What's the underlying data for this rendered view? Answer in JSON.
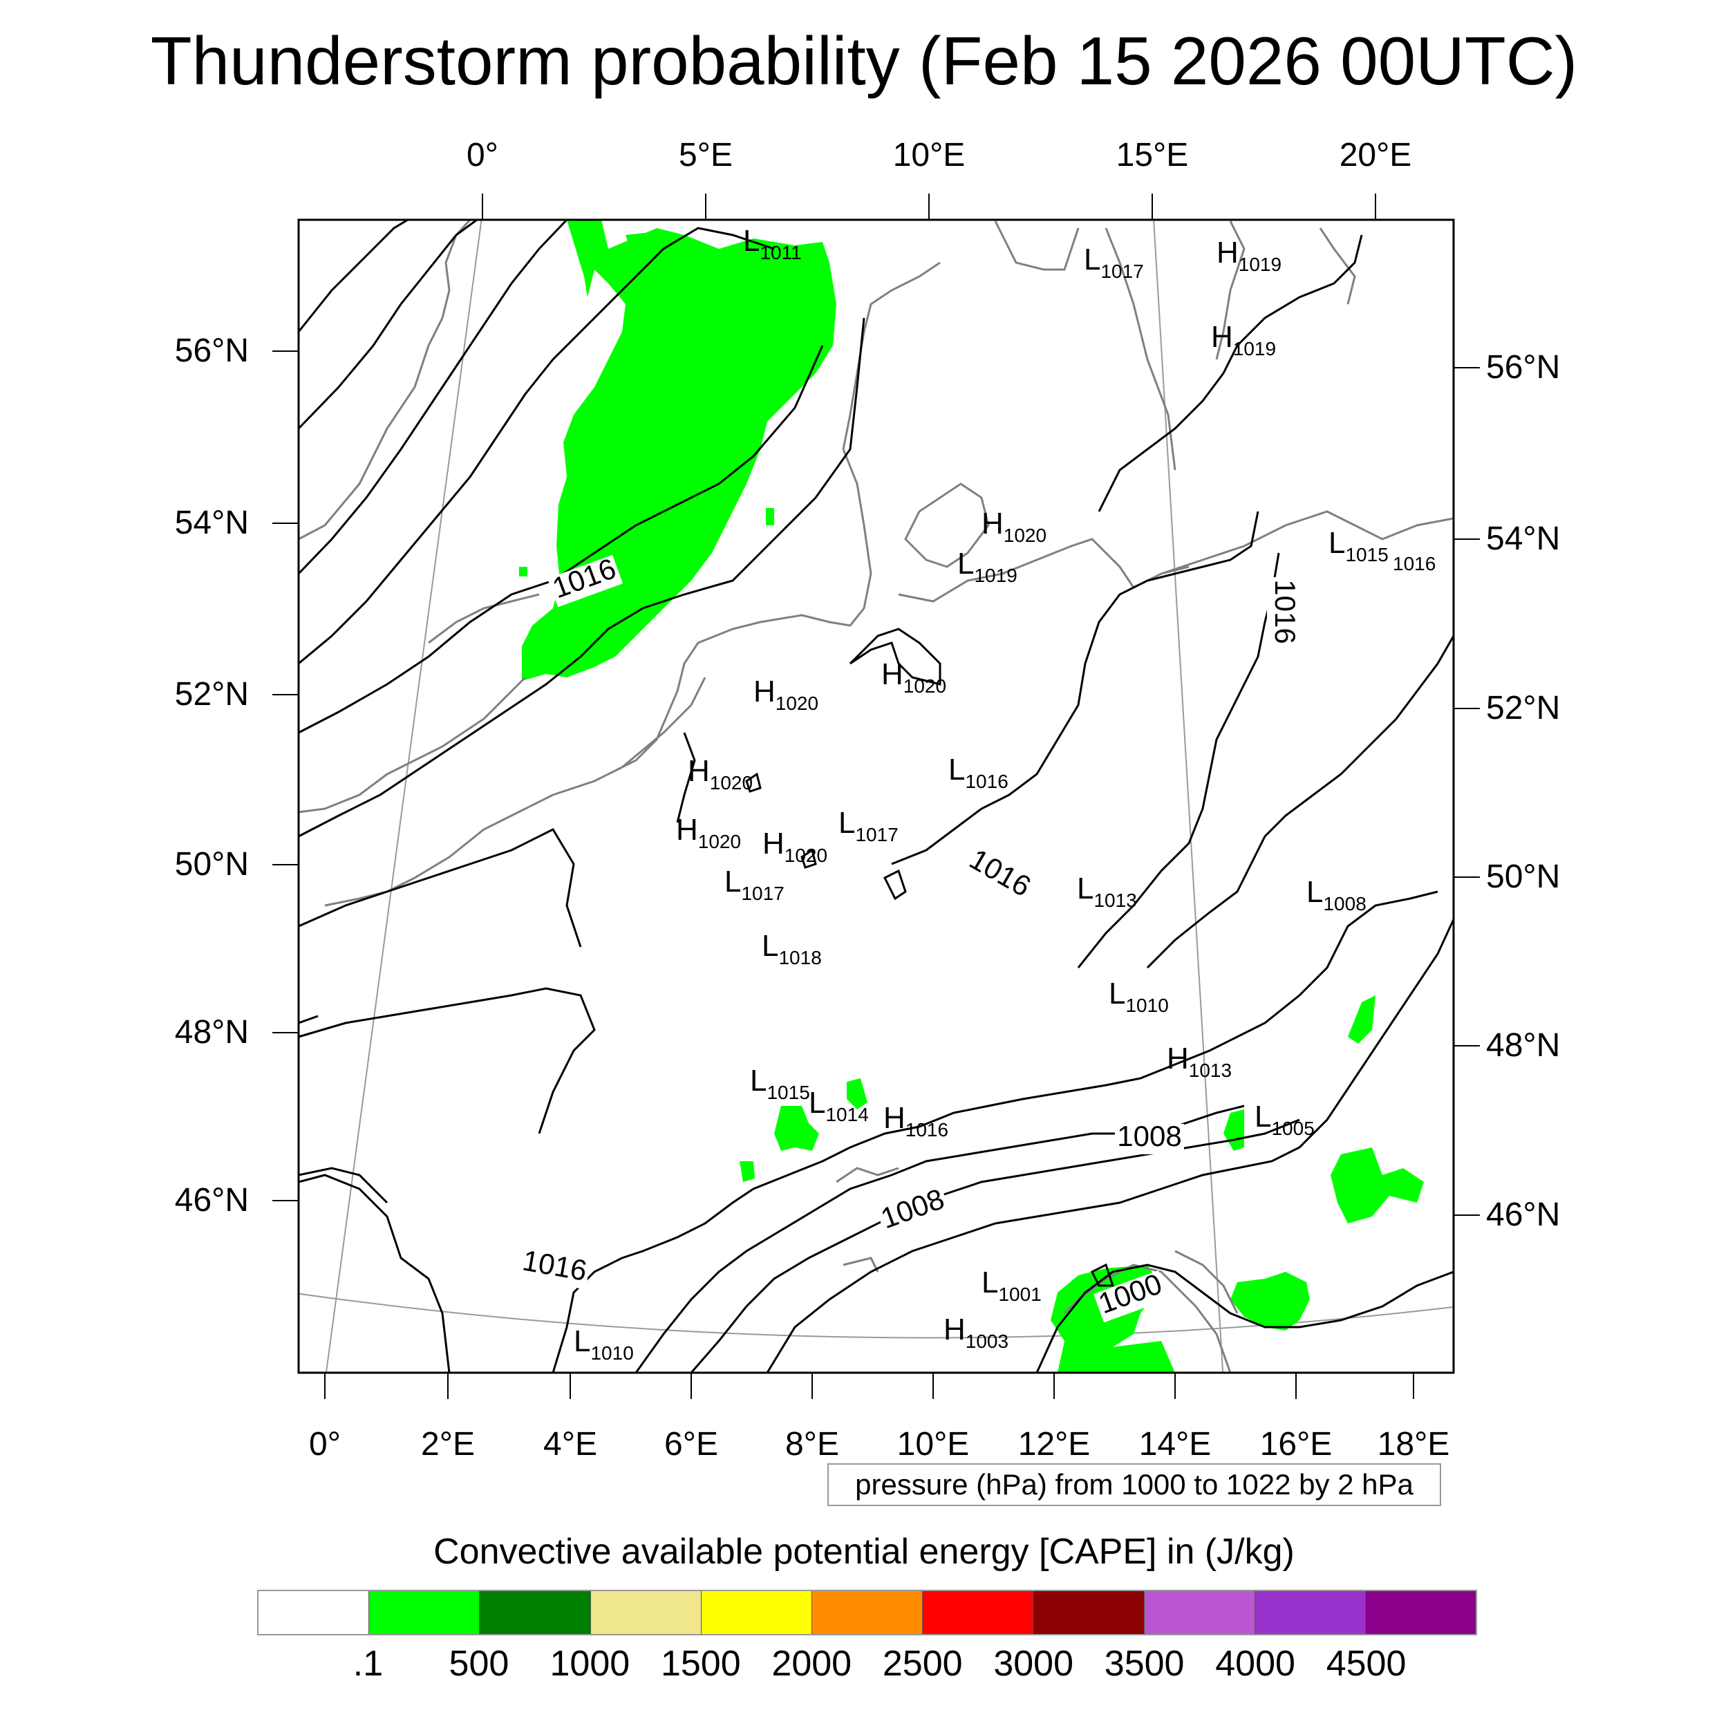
{
  "title": "Thunderstorm probability (Feb 15 2026 00UTC)",
  "top_lon_labels": [
    "0°",
    "5°E",
    "10°E",
    "15°E",
    "20°E"
  ],
  "bottom_lon_labels": [
    "0°",
    "2°E",
    "4°E",
    "6°E",
    "8°E",
    "10°E",
    "12°E",
    "14°E",
    "16°E",
    "18°E"
  ],
  "left_lat_labels": [
    "56°N",
    "54°N",
    "52°N",
    "50°N",
    "48°N",
    "46°N"
  ],
  "right_lat_labels": [
    "56°N",
    "54°N",
    "52°N",
    "50°N",
    "48°N",
    "46°N"
  ],
  "pressure_centers": [
    {
      "type": "L",
      "value": "1011"
    },
    {
      "type": "L",
      "value": "1017"
    },
    {
      "type": "H",
      "value": "1019"
    },
    {
      "type": "H",
      "value": "1019"
    },
    {
      "type": "H",
      "value": "1020"
    },
    {
      "type": "L",
      "value": "1019"
    },
    {
      "type": "L",
      "value": "1015"
    },
    {
      "type": "H",
      "value": "1020"
    },
    {
      "type": "H",
      "value": "1020"
    },
    {
      "type": "L",
      "value": "1016"
    },
    {
      "type": "H",
      "value": "1020"
    },
    {
      "type": "H",
      "value": "1020"
    },
    {
      "type": "L",
      "value": "1017"
    },
    {
      "type": "H",
      "value": "1020"
    },
    {
      "type": "L",
      "value": "1017"
    },
    {
      "type": "L",
      "value": "1013"
    },
    {
      "type": "L",
      "value": "1008"
    },
    {
      "type": "L",
      "value": "1018"
    },
    {
      "type": "L",
      "value": "1010"
    },
    {
      "type": "H",
      "value": "1013"
    },
    {
      "type": "L",
      "value": "1015"
    },
    {
      "type": "L",
      "value": "1014"
    },
    {
      "type": "H",
      "value": "1016"
    },
    {
      "type": "L",
      "value": "1005"
    },
    {
      "type": "L",
      "value": "1001"
    },
    {
      "type": "H",
      "value": "1003"
    },
    {
      "type": "L",
      "value": "1010"
    }
  ],
  "loose_labels": [
    "1016"
  ],
  "isobar_labels": [
    "1016",
    "1016",
    "1016",
    "1016",
    "1008",
    "1008",
    "1000"
  ],
  "pressure_note": "pressure (hPa) from 1000 to 1022 by 2 hPa",
  "cape_title": "Convective available potential energy [CAPE] in (J/kg)",
  "colorbar": {
    "colors": [
      "#ffffff",
      "#00ff00",
      "#008000",
      "#f0e68c",
      "#ffff00",
      "#ff8c00",
      "#ff0000",
      "#8b0000",
      "#ba55d3",
      "#9932cc",
      "#8b008b"
    ],
    "labels": [
      ".1",
      "500",
      "1000",
      "1500",
      "2000",
      "2500",
      "3000",
      "3500",
      "4000",
      "4500"
    ]
  },
  "colors": {
    "cape_green": "#00ff00",
    "isobar": "#000000",
    "coastline": "#808080",
    "graticule": "#9a9a9a"
  }
}
